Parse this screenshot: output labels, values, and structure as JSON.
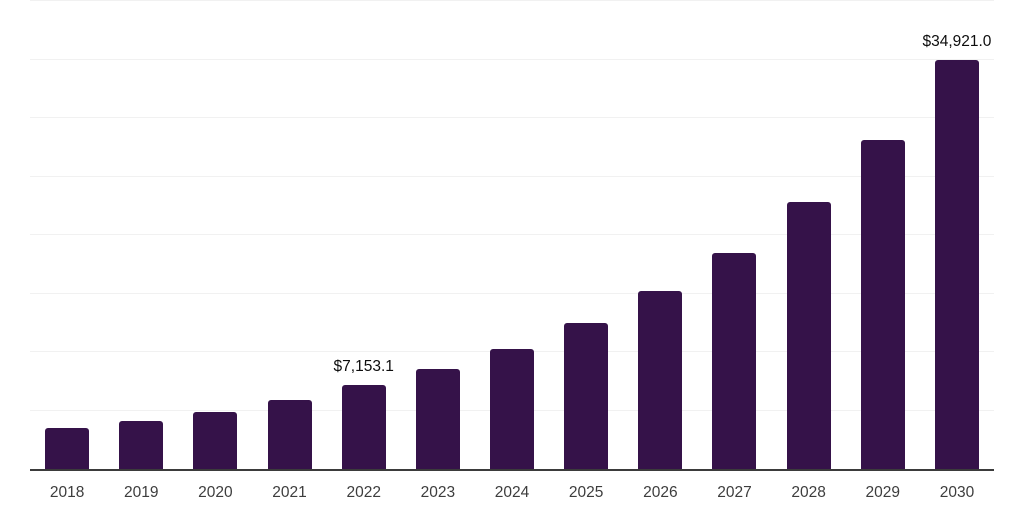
{
  "chart_data": {
    "type": "bar",
    "title": "",
    "xlabel": "",
    "ylabel": "",
    "categories": [
      "2018",
      "2019",
      "2020",
      "2021",
      "2022",
      "2023",
      "2024",
      "2025",
      "2026",
      "2027",
      "2028",
      "2029",
      "2030"
    ],
    "values": [
      3500,
      4130,
      4870,
      5920,
      7153.1,
      8530,
      10260,
      12500,
      15200,
      18500,
      22780,
      28150,
      34921.0
    ],
    "data_labels": {
      "2022": "$7,153.1",
      "2030": "$34,921.0"
    },
    "ylim": [
      0,
      40000
    ],
    "gridline_interval": 5000,
    "grid": "horizontal-only",
    "legend": "none",
    "y_axis_labels_visible": false,
    "colors": {
      "bar": "#351249",
      "gridline": "#f1f1f1",
      "axis_line": "#3b3b3b",
      "tick_label": "#3d3d3d",
      "value_label": "#0d0d0d",
      "background": "#ffffff"
    }
  }
}
